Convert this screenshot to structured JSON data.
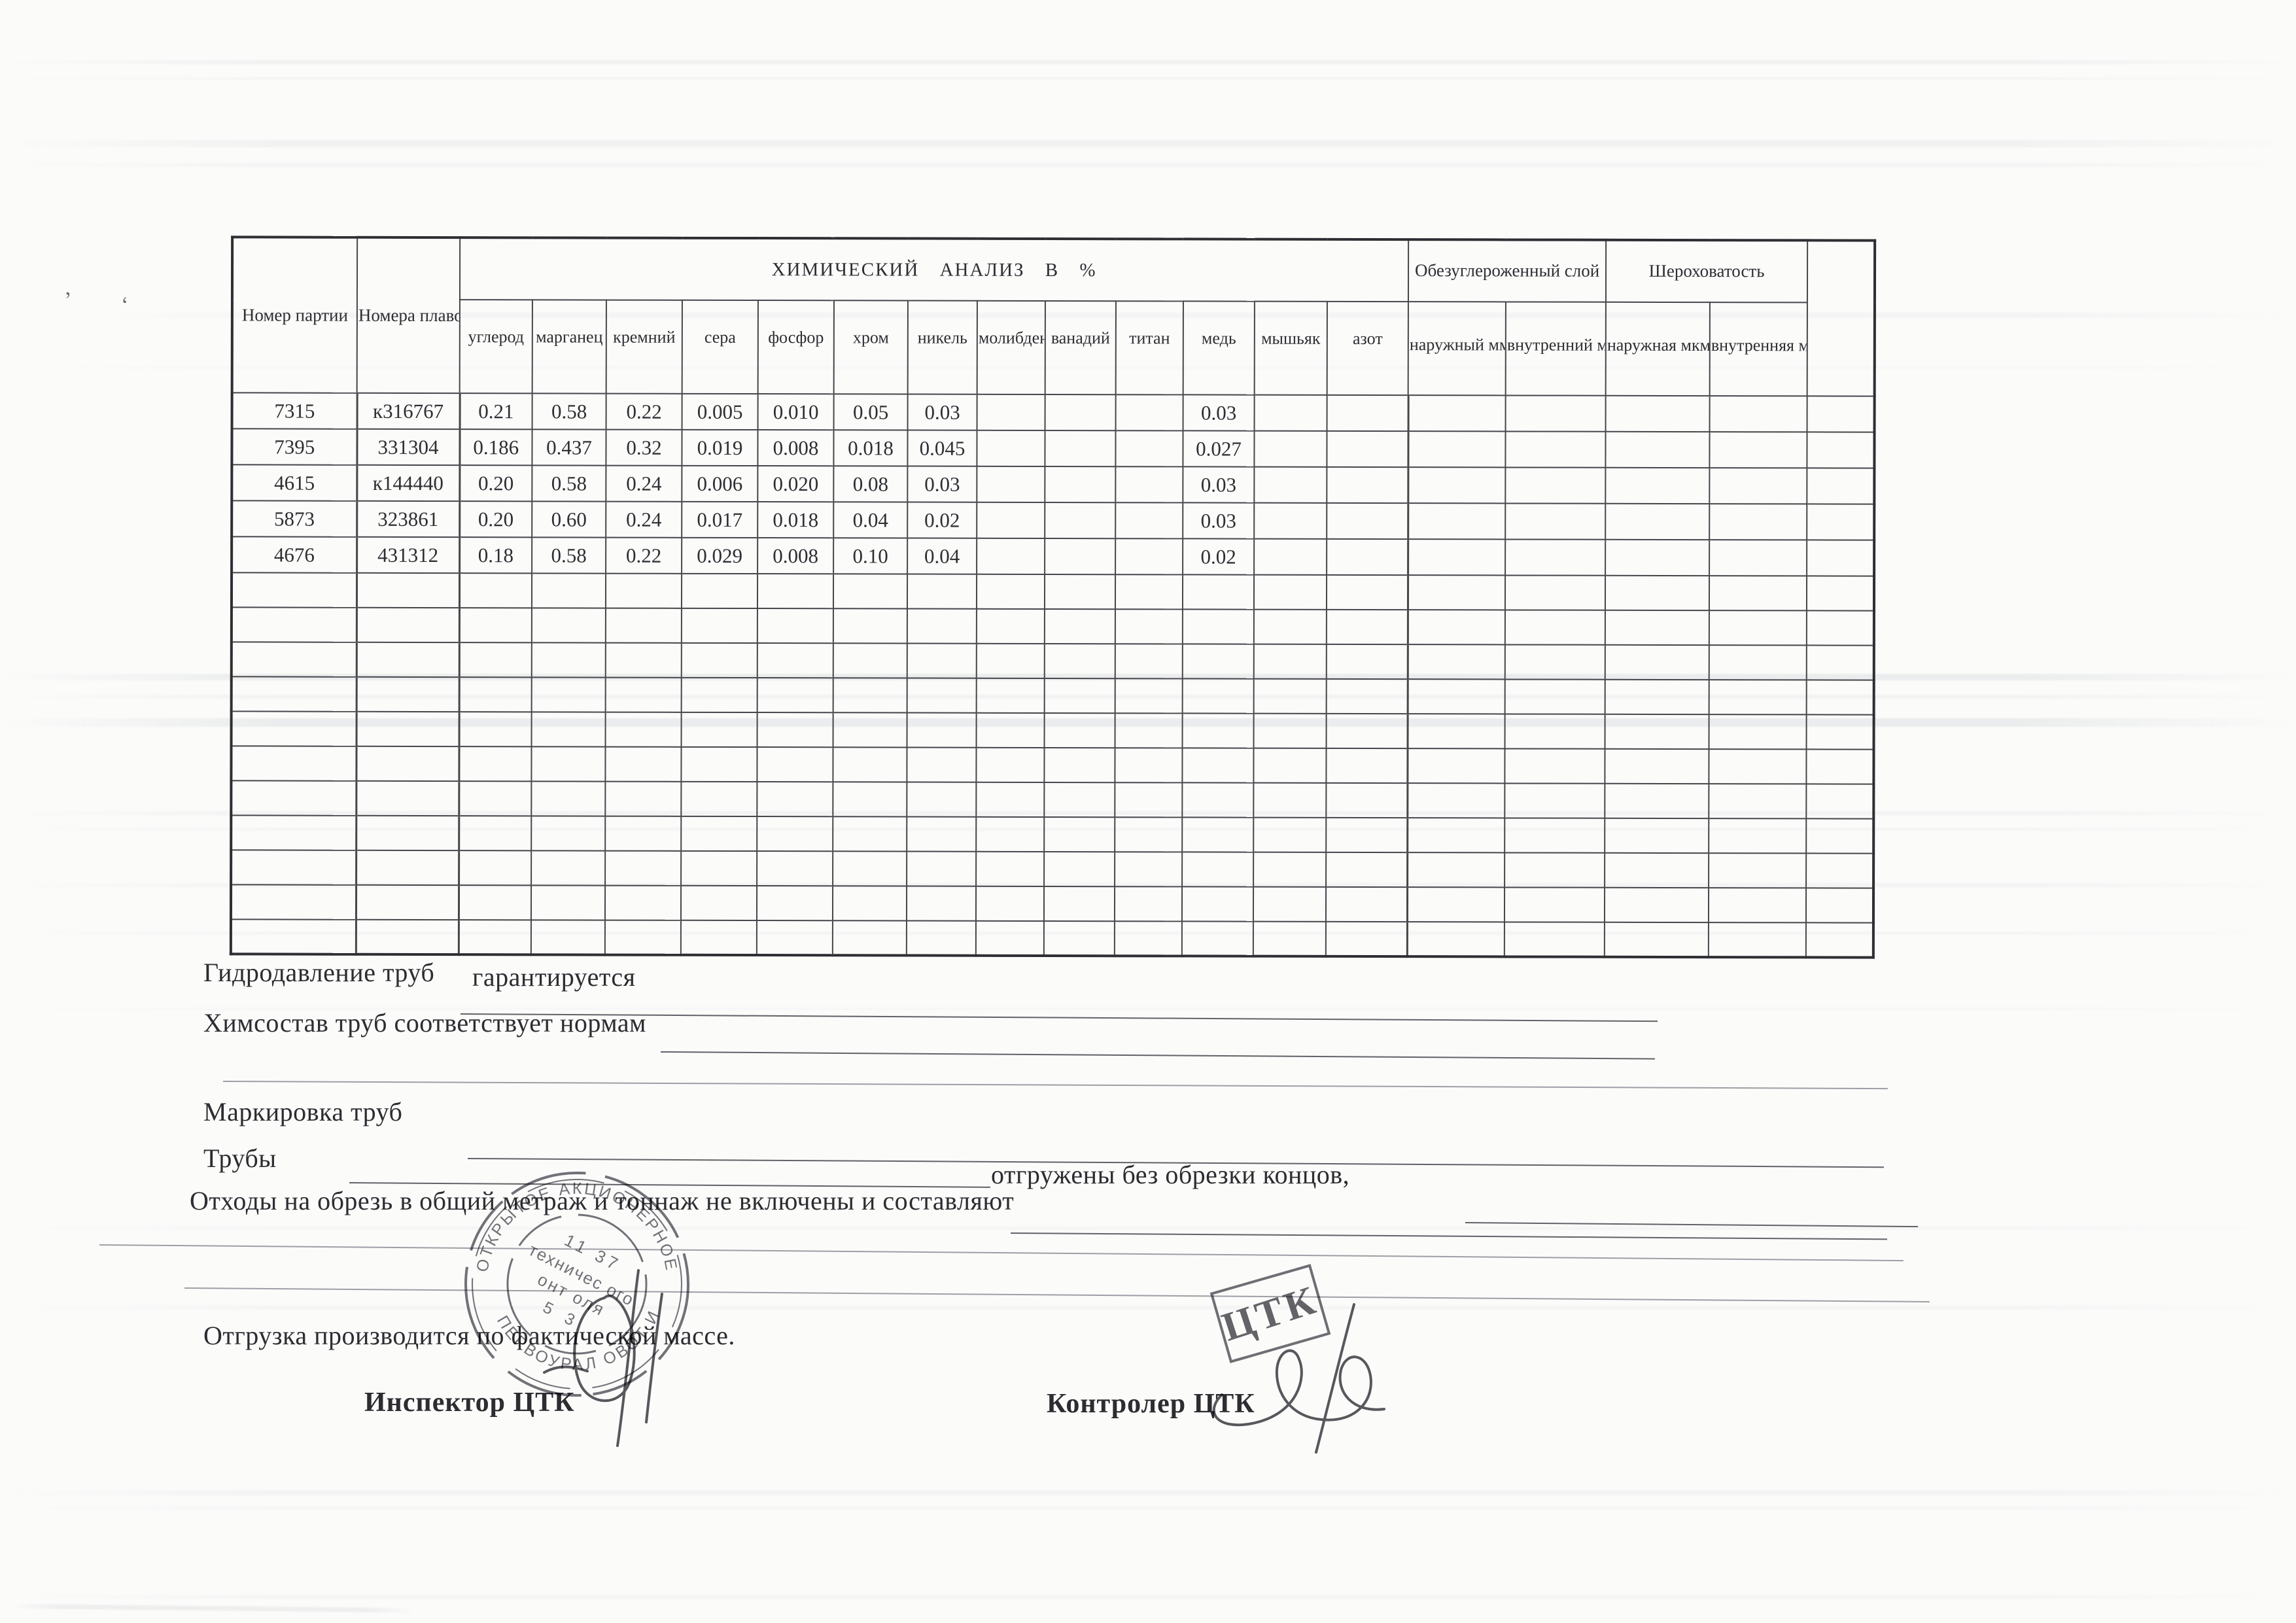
{
  "table": {
    "columns_total": 20,
    "title": "ХИМИЧЕСКИЙ АНАЛИЗ В  %",
    "left_headers": {
      "batch": "Номер партии",
      "heats": "Номера плавок"
    },
    "group_headers": {
      "decarb": "Обезуглероженный слой",
      "rough": "Шероховатость"
    },
    "element_columns": [
      "углерод",
      "марганец",
      "кремний",
      "сера",
      "фосфор",
      "хром",
      "никель",
      "молибден",
      "ванадий",
      "титан",
      "медь",
      "мышьяк",
      "азот"
    ],
    "sub_headers": {
      "outer_mm": "наружный мм",
      "inner_mm": "внутренний мм.",
      "outer_um": "наружная мкм",
      "inner_um": "внутренняя мкм"
    },
    "rows": [
      [
        "7315",
        "к316767",
        "0.21",
        "0.58",
        "0.22",
        "0.005",
        "0.010",
        "0.05",
        "0.03",
        "",
        "",
        "",
        "0.03",
        "",
        "",
        "",
        "",
        "",
        "",
        ""
      ],
      [
        "7395",
        "331304",
        "0.186",
        "0.437",
        "0.32",
        "0.019",
        "0.008",
        "0.018",
        "0.045",
        "",
        "",
        "",
        "0.027",
        "",
        "",
        "",
        "",
        "",
        "",
        ""
      ],
      [
        "4615",
        "к144440",
        "0.20",
        "0.58",
        "0.24",
        "0.006",
        "0.020",
        "0.08",
        "0.03",
        "",
        "",
        "",
        "0.03",
        "",
        "",
        "",
        "",
        "",
        "",
        ""
      ],
      [
        "5873",
        "323861",
        "0.20",
        "0.60",
        "0.24",
        "0.017",
        "0.018",
        "0.04",
        "0.02",
        "",
        "",
        "",
        "0.03",
        "",
        "",
        "",
        "",
        "",
        "",
        ""
      ],
      [
        "4676",
        "431312",
        "0.18",
        "0.58",
        "0.22",
        "0.029",
        "0.008",
        "0.10",
        "0.04",
        "",
        "",
        "",
        "0.02",
        "",
        "",
        "",
        "",
        "",
        "",
        ""
      ]
    ],
    "empty_row_count": 11
  },
  "notes": {
    "hydro_label": "Гидродавление труб",
    "hydro_value": "гарантируется",
    "chem_line": "Химсостав труб соответствует нормам",
    "marking_label": "Маркировка труб",
    "pipes_label": "Трубы",
    "shipped_text": "отгружены без обрезки концов,",
    "waste_text": "Отходы на обрезь в общий метраж и тоннаж не включены и составляют",
    "shipping_text": "Отгрузка производится по фактической массе.",
    "inspector_label": "Инспектор  ЦТК",
    "controller_label": "Контролер ЦТК"
  },
  "stamps": {
    "round": {
      "outer_top": "ОТКРЫТОЕ АКЦИОНЕРНОЕ ОБЩ",
      "outer_bottom": "ПЕРВОУРАЛ   ОВОТ  И ЗА",
      "inner_lines": [
        "11 37",
        "техничес ого",
        "онт   оля",
        "5 3"
      ]
    },
    "ctk": {
      "text": "ЦТК"
    }
  },
  "colors": {
    "paper": "#fbfbfa",
    "ink": "#2a2a2e",
    "table_line": "#46464b",
    "stamp_ink": "#54545c"
  }
}
